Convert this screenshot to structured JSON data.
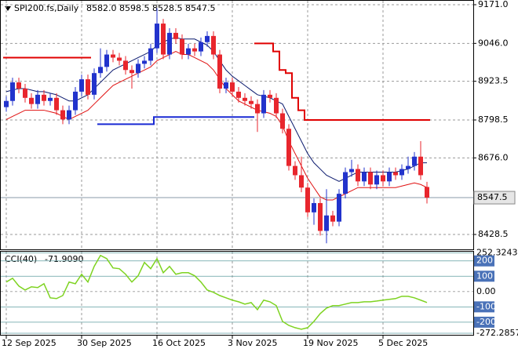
{
  "chart_data": {
    "type": "candlestick",
    "symbol": "SPI200.fs,Daily",
    "ohlc_text": "8582.0 8598.5 8528.5 8547.5",
    "categories": [
      "12 Sep 2025",
      null,
      null,
      null,
      null,
      null,
      null,
      null,
      null,
      null,
      null,
      null,
      "30 Sep 2025",
      null,
      null,
      null,
      null,
      null,
      null,
      null,
      null,
      null,
      null,
      null,
      "16 Oct 2025",
      null,
      null,
      null,
      null,
      null,
      null,
      null,
      null,
      null,
      null,
      null,
      "3 Nov 2025",
      null,
      null,
      null,
      null,
      null,
      null,
      null,
      null,
      null,
      null,
      null,
      "19 Nov 2025",
      null,
      null,
      null,
      null,
      null,
      null,
      null,
      null,
      null,
      null,
      null,
      "5 Dec 2025",
      null,
      null,
      null,
      null,
      null,
      null,
      null
    ],
    "candles": [
      [
        8840,
        8875,
        8825,
        8860
      ],
      [
        8860,
        8935,
        8845,
        8920
      ],
      [
        8920,
        8935,
        8885,
        8900
      ],
      [
        8900,
        8915,
        8855,
        8870
      ],
      [
        8870,
        8885,
        8835,
        8850
      ],
      [
        8850,
        8895,
        8835,
        8880
      ],
      [
        8880,
        8895,
        8845,
        8860
      ],
      [
        8860,
        8885,
        8845,
        8870
      ],
      [
        8870,
        8885,
        8815,
        8830
      ],
      [
        8830,
        8845,
        8785,
        8800
      ],
      [
        8800,
        8845,
        8785,
        8830
      ],
      [
        8830,
        8905,
        8815,
        8890
      ],
      [
        8890,
        8945,
        8875,
        8930
      ],
      [
        8930,
        8945,
        8865,
        8880
      ],
      [
        8880,
        8965,
        8865,
        8950
      ],
      [
        8950,
        9030,
        8935,
        8970
      ],
      [
        8970,
        9025,
        8955,
        9010
      ],
      [
        9010,
        9025,
        8985,
        9000
      ],
      [
        9000,
        9015,
        8975,
        8990
      ],
      [
        8990,
        9005,
        8945,
        8960
      ],
      [
        8960,
        8975,
        8900,
        8950
      ],
      [
        8950,
        8995,
        8935,
        8980
      ],
      [
        8980,
        9005,
        8965,
        8990
      ],
      [
        8990,
        9045,
        8975,
        9030
      ],
      [
        9030,
        9160,
        9015,
        9110
      ],
      [
        9110,
        9125,
        8995,
        9010
      ],
      [
        9010,
        9095,
        8995,
        9080
      ],
      [
        9080,
        9095,
        9045,
        9060
      ],
      [
        9060,
        9075,
        8995,
        9010
      ],
      [
        9010,
        9045,
        8995,
        9030
      ],
      [
        9030,
        9045,
        9005,
        9020
      ],
      [
        9020,
        9065,
        9005,
        9050
      ],
      [
        9050,
        9085,
        9035,
        9070
      ],
      [
        9070,
        9085,
        8995,
        9010
      ],
      [
        9010,
        9025,
        8885,
        8900
      ],
      [
        8900,
        8935,
        8885,
        8920
      ],
      [
        8920,
        8935,
        8875,
        8890
      ],
      [
        8890,
        8905,
        8855,
        8870
      ],
      [
        8870,
        8885,
        8845,
        8860
      ],
      [
        8860,
        8875,
        8835,
        8850
      ],
      [
        8850,
        8865,
        8760,
        8820
      ],
      [
        8820,
        8895,
        8805,
        8880
      ],
      [
        8880,
        8895,
        8855,
        8870
      ],
      [
        8870,
        8885,
        8805,
        8820
      ],
      [
        8820,
        8835,
        8755,
        8770
      ],
      [
        8770,
        8785,
        8635,
        8650
      ],
      [
        8650,
        8665,
        8605,
        8620
      ],
      [
        8620,
        8680,
        8565,
        8580
      ],
      [
        8580,
        8595,
        8485,
        8500
      ],
      [
        8500,
        8545,
        8460,
        8530
      ],
      [
        8530,
        8545,
        8425,
        8440
      ],
      [
        8440,
        8575,
        8400,
        8490
      ],
      [
        8490,
        8505,
        8455,
        8470
      ],
      [
        8470,
        8575,
        8455,
        8560
      ],
      [
        8560,
        8645,
        8545,
        8630
      ],
      [
        8630,
        8670,
        8615,
        8640
      ],
      [
        8640,
        8655,
        8585,
        8600
      ],
      [
        8600,
        8645,
        8585,
        8630
      ],
      [
        8630,
        8645,
        8575,
        8590
      ],
      [
        8590,
        8635,
        8575,
        8620
      ],
      [
        8620,
        8635,
        8585,
        8600
      ],
      [
        8600,
        8645,
        8585,
        8630
      ],
      [
        8630,
        8645,
        8605,
        8620
      ],
      [
        8620,
        8655,
        8605,
        8640
      ],
      [
        8640,
        8680,
        8625,
        8650
      ],
      [
        8650,
        8695,
        8635,
        8680
      ],
      [
        8680,
        8730,
        8605,
        8620
      ],
      [
        8582,
        8598.5,
        8528.5,
        8547.5
      ]
    ],
    "up_color": "#2233cc",
    "down_color": "#e8262d",
    "series": [
      {
        "color": "#0b1a6e",
        "width": 1,
        "values": [
          8890,
          8895,
          8900,
          8900,
          8895,
          8890,
          8890,
          8885,
          8880,
          8870,
          8860,
          8860,
          8870,
          8880,
          8900,
          8920,
          8940,
          8960,
          8970,
          8980,
          8990,
          9000,
          9010,
          9020,
          9040,
          9050,
          9060,
          9065,
          9060,
          9060,
          9060,
          9050,
          9040,
          9020,
          8990,
          8960,
          8940,
          8925,
          8910,
          8895,
          8880,
          8875,
          8870,
          8860,
          8850,
          8810,
          8770,
          8730,
          8690,
          8660,
          8640,
          8620,
          8610,
          8600,
          8610,
          8620,
          8630,
          8630,
          8630,
          8630,
          8630,
          8630,
          8630,
          8635,
          8640,
          8650,
          8660,
          8660
        ]
      },
      {
        "color": "#e01010",
        "width": 1,
        "values": [
          8800,
          8810,
          8820,
          8830,
          8830,
          8830,
          8830,
          8825,
          8820,
          8810,
          8800,
          8810,
          8820,
          8830,
          8850,
          8870,
          8890,
          8910,
          8920,
          8930,
          8940,
          8950,
          8960,
          8970,
          8990,
          9000,
          9010,
          9020,
          9010,
          9010,
          9000,
          8990,
          8980,
          8960,
          8930,
          8900,
          8880,
          8860,
          8850,
          8840,
          8830,
          8825,
          8820,
          8810,
          8780,
          8730,
          8690,
          8650,
          8610,
          8580,
          8550,
          8540,
          8540,
          8550,
          8560,
          8570,
          8580,
          8580,
          8580,
          8580,
          8580,
          8580,
          8580,
          8585,
          8590,
          8595,
          8590,
          8580
        ]
      },
      {
        "color": "#e00000",
        "width": 2,
        "step": true,
        "values": [
          9000,
          9000,
          9000,
          9000,
          9000,
          9000,
          9000,
          9000,
          9000,
          9000,
          9000,
          9000,
          9000,
          9000,
          null,
          null,
          null,
          null,
          null,
          null,
          null,
          null,
          null,
          null,
          null,
          null,
          null,
          null,
          null,
          null,
          null,
          null,
          null,
          null,
          null,
          null,
          null,
          null,
          null,
          null,
          9046,
          9046,
          9046,
          9020,
          8960,
          8950,
          8870,
          8830,
          8798.5,
          8798.5,
          8798.5,
          8798.5,
          8798.5,
          8798.5,
          8798.5,
          8798.5,
          8798.5,
          8798.5,
          8798.5,
          8798.5,
          8798.5,
          8798.5,
          8798.5,
          8798.5,
          8798.5,
          8798.5,
          8798.5,
          8798.5
        ]
      },
      {
        "color": "#1a2ad4",
        "width": 2,
        "step": true,
        "values": [
          null,
          null,
          null,
          null,
          null,
          null,
          null,
          null,
          null,
          null,
          null,
          null,
          null,
          null,
          null,
          8785,
          8785,
          8785,
          8785,
          8785,
          8785,
          8785,
          8785,
          8785,
          8808,
          8808,
          8808,
          8808,
          8808,
          8808,
          8808,
          8808,
          8808,
          8808,
          8808,
          8808,
          8808,
          8808,
          8808,
          8808,
          null,
          null,
          null,
          null,
          null,
          null,
          null,
          null,
          null,
          null,
          null,
          null,
          null,
          null,
          null,
          null,
          null,
          null,
          null,
          null,
          null,
          null,
          null,
          null,
          null,
          null,
          null,
          null
        ]
      }
    ],
    "ylim": [
      8380.4,
      9186.2
    ],
    "yticks": [
      {
        "value": 9171,
        "label": "9171.0"
      },
      {
        "value": 9046,
        "label": "9046.0"
      },
      {
        "value": 8923.5,
        "label": "8923.5"
      },
      {
        "value": 8798.5,
        "label": "8798.5"
      },
      {
        "value": 8676,
        "label": "8676.0"
      },
      {
        "value": 8428.5,
        "label": "8428.5"
      }
    ],
    "last_price": 8547.5,
    "grid": true,
    "cci": {
      "name": "CCI(40)",
      "current_label": "-71.9090",
      "color": "#7ed321",
      "values": [
        62,
        87,
        36,
        10,
        31,
        26,
        51,
        -41,
        -46,
        -26,
        62,
        51,
        113,
        62,
        164,
        236,
        215,
        154,
        149,
        113,
        62,
        103,
        190,
        149,
        215,
        123,
        164,
        113,
        123,
        123,
        103,
        62,
        10,
        -5,
        -26,
        -41,
        -56,
        -67,
        -82,
        -72,
        -118,
        -56,
        -67,
        -92,
        -195,
        -221,
        -236,
        -246,
        -236,
        -195,
        -144,
        -108,
        -92,
        -92,
        -82,
        -72,
        -72,
        -67,
        -67,
        -62,
        -56,
        -51,
        -46,
        -31,
        -31,
        -41,
        -56,
        -71.909
      ],
      "ylim": [
        -272.2857,
        252.3243
      ],
      "yticks": [
        252.3243,
        200,
        100,
        {
          "value": 0,
          "label": "0.00"
        },
        -100,
        -200,
        -272.2857
      ]
    }
  }
}
